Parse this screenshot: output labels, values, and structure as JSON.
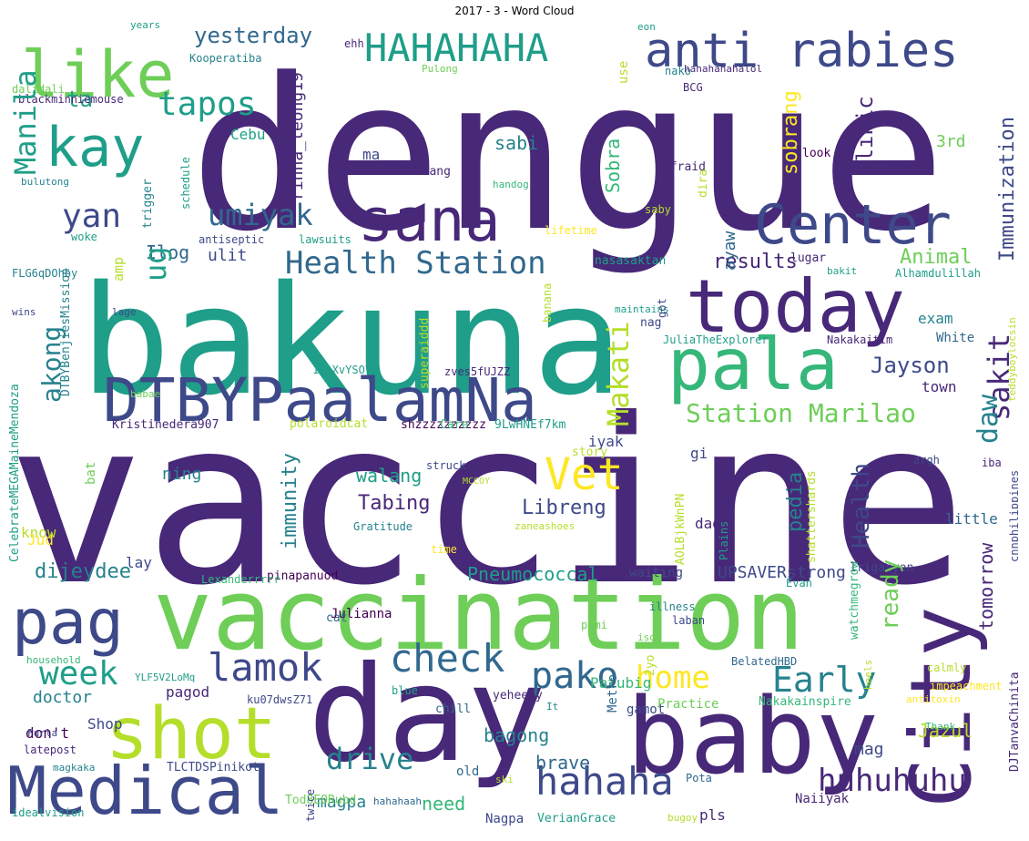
{
  "title": "2017 - 3 - Word Cloud",
  "colors": {
    "c1": "#440154",
    "c2": "#482878",
    "c3": "#3e4989",
    "c4": "#31688e",
    "c5": "#26828e",
    "c6": "#1f9e89",
    "c7": "#35b779",
    "c8": "#6ece58",
    "c9": "#b5de2b",
    "c10": "#fde725"
  },
  "words": [
    {
      "text": "dengue",
      "color": "c2"
    },
    {
      "text": "vaccine",
      "color": "c2"
    },
    {
      "text": "bakuna",
      "color": "c6"
    },
    {
      "text": "vaccination",
      "color": "c8"
    },
    {
      "text": "day",
      "color": "c2"
    },
    {
      "text": "baby",
      "color": "c2"
    },
    {
      "text": "shot",
      "color": "c9"
    },
    {
      "text": "Medical",
      "color": "c3"
    },
    {
      "text": "City",
      "color": "c2"
    },
    {
      "text": "DTBYPaalamNa",
      "color": "c3"
    },
    {
      "text": "today",
      "color": "c2"
    },
    {
      "text": "pala",
      "color": "c7"
    },
    {
      "text": "sana",
      "color": "c2"
    },
    {
      "text": "Center",
      "color": "c3"
    },
    {
      "text": "pag",
      "color": "c3"
    },
    {
      "text": "like",
      "color": "c8"
    },
    {
      "text": "kay",
      "color": "c6"
    },
    {
      "text": "anti rabies",
      "color": "c3"
    },
    {
      "text": "HAHAHAHA",
      "color": "c6"
    },
    {
      "text": "Vet",
      "color": "c10"
    },
    {
      "text": "check",
      "color": "c4"
    },
    {
      "text": "lamok",
      "color": "c3"
    },
    {
      "text": "pako",
      "color": "c4"
    },
    {
      "text": "hahaha",
      "color": "c3"
    },
    {
      "text": "huhuhuhu",
      "color": "c2"
    },
    {
      "text": "Early",
      "color": "c5"
    },
    {
      "text": "home",
      "color": "c10"
    },
    {
      "text": "week",
      "color": "c6"
    },
    {
      "text": "drive",
      "color": "c5"
    },
    {
      "text": "Health Station",
      "color": "c4"
    },
    {
      "text": "Station Marilao",
      "color": "c8"
    },
    {
      "text": "umiyak",
      "color": "c4"
    },
    {
      "text": "yan",
      "color": "c3"
    },
    {
      "text": "Jayson",
      "color": "c3"
    },
    {
      "text": "Libreng",
      "color": "c3"
    },
    {
      "text": "Tabing",
      "color": "c2"
    },
    {
      "text": "walang",
      "color": "c6"
    },
    {
      "text": "results",
      "color": "c2"
    },
    {
      "text": "Animal",
      "color": "c8"
    },
    {
      "text": "dijeydee",
      "color": "c5"
    },
    {
      "text": "Pneumococcal",
      "color": "c6"
    },
    {
      "text": "UPSAVERstrong",
      "color": "c3"
    },
    {
      "text": "brave",
      "color": "c4"
    },
    {
      "text": "need",
      "color": "c7"
    },
    {
      "text": "magpa",
      "color": "c5"
    },
    {
      "text": "pls",
      "color": "c2"
    },
    {
      "text": "yesterday",
      "color": "c4"
    },
    {
      "text": "tapos",
      "color": "c6"
    },
    {
      "text": "ta",
      "color": "c6"
    },
    {
      "text": "Ilog",
      "color": "c4"
    },
    {
      "text": "ulit",
      "color": "c3"
    },
    {
      "text": "ning",
      "color": "c5"
    },
    {
      "text": "doctor",
      "color": "c5"
    },
    {
      "text": "Shop",
      "color": "c3"
    },
    {
      "text": "pagod",
      "color": "c2"
    },
    {
      "text": "Patubig",
      "color": "c7"
    },
    {
      "text": "bagong",
      "color": "c5"
    },
    {
      "text": "don't",
      "color": "c1"
    },
    {
      "text": "Jazul",
      "color": "c9"
    },
    {
      "text": "mag",
      "color": "c3"
    },
    {
      "text": "iyak",
      "color": "c3"
    },
    {
      "text": "dad",
      "color": "c2"
    },
    {
      "text": "gi",
      "color": "c3"
    },
    {
      "text": "town",
      "color": "c2"
    },
    {
      "text": "exam",
      "color": "c5"
    },
    {
      "text": "3rd",
      "color": "c8"
    },
    {
      "text": "sabi",
      "color": "c5"
    },
    {
      "text": "ma",
      "color": "c3"
    },
    {
      "text": "Cebu",
      "color": "c6"
    },
    {
      "text": "know",
      "color": "c9"
    },
    {
      "text": "lay",
      "color": "c3"
    },
    {
      "text": "little",
      "color": "c4"
    },
    {
      "text": "waiting",
      "color": "c3"
    },
    {
      "text": "gamot",
      "color": "c3"
    },
    {
      "text": "Practice",
      "color": "c8"
    },
    {
      "text": "old",
      "color": "c4"
    },
    {
      "text": "chill",
      "color": "c4"
    },
    {
      "text": "yeheeey",
      "color": "c2"
    },
    {
      "text": "Julianna",
      "color": "c1"
    },
    {
      "text": "cat",
      "color": "c4"
    },
    {
      "text": "Nagpa",
      "color": "c3"
    },
    {
      "text": "VerianGrace",
      "color": "c6"
    },
    {
      "text": "Tod8EORubd",
      "color": "c8"
    },
    {
      "text": "TLCTDSPinikot",
      "color": "c3"
    },
    {
      "text": "Naiiyak",
      "color": "c2"
    },
    {
      "text": "Jud",
      "color": "c10"
    },
    {
      "text": "Kristinedera907",
      "color": "c2"
    },
    {
      "text": "polaroidcat",
      "color": "c9"
    },
    {
      "text": "shzzzzzzzzzz",
      "color": "c1"
    },
    {
      "text": "Care",
      "color": "c7"
    },
    {
      "text": "9LwHNEf7km",
      "color": "c6"
    },
    {
      "text": "zves5fUJZZ",
      "color": "c2"
    },
    {
      "text": "1VoXvYSO7F",
      "color": "c6"
    },
    {
      "text": "JuliaTheExplorer",
      "color": "c6"
    },
    {
      "text": "Nakakaitim",
      "color": "c2"
    },
    {
      "text": "White",
      "color": "c4"
    },
    {
      "text": "nag",
      "color": "c3"
    },
    {
      "text": "nasasaktan",
      "color": "c6"
    },
    {
      "text": "lugar",
      "color": "c2"
    },
    {
      "text": "bakit",
      "color": "c6"
    },
    {
      "text": "Alhamdulillah",
      "color": "c6"
    },
    {
      "text": "maintains",
      "color": "c6"
    },
    {
      "text": "antiseptic",
      "color": "c3"
    },
    {
      "text": "lawsuits",
      "color": "c6"
    },
    {
      "text": "lifetime",
      "color": "c10"
    },
    {
      "text": "saby",
      "color": "c9"
    },
    {
      "text": "afraid",
      "color": "c2"
    },
    {
      "text": "handog",
      "color": "c7"
    },
    {
      "text": "habang",
      "color": "c2"
    },
    {
      "text": "look",
      "color": "c1"
    },
    {
      "text": "BCG",
      "color": "c2"
    },
    {
      "text": "nako",
      "color": "c5"
    },
    {
      "text": "hahahahahalol",
      "color": "c2"
    },
    {
      "text": "eon",
      "color": "c6"
    },
    {
      "text": "ehh",
      "color": "c2"
    },
    {
      "text": "Pulong",
      "color": "c8"
    },
    {
      "text": "Kooperatiba",
      "color": "c5"
    },
    {
      "text": "years",
      "color": "c6"
    },
    {
      "text": "dalidali",
      "color": "c8"
    },
    {
      "text": "blackminniemouse",
      "color": "c2"
    },
    {
      "text": "bulutong",
      "color": "c5"
    },
    {
      "text": "woke",
      "color": "c6"
    },
    {
      "text": "FLG6qDOhby",
      "color": "c5"
    },
    {
      "text": "wins",
      "color": "c3"
    },
    {
      "text": "lage",
      "color": "c3"
    },
    {
      "text": "babae",
      "color": "c8"
    },
    {
      "text": "struck",
      "color": "c3"
    },
    {
      "text": "MCCOY",
      "color": "c9"
    },
    {
      "text": "Gratitude",
      "color": "c5"
    },
    {
      "text": "zaneashoes",
      "color": "c9"
    },
    {
      "text": "time",
      "color": "c10"
    },
    {
      "text": "story",
      "color": "c9"
    },
    {
      "text": "pinapanuod",
      "color": "c1"
    },
    {
      "text": "Lexanderrrrr",
      "color": "c7"
    },
    {
      "text": "Evan",
      "color": "c6"
    },
    {
      "text": "argh",
      "color": "c3"
    },
    {
      "text": "iba",
      "color": "c2"
    },
    {
      "text": "Irigasyon",
      "color": "c3"
    },
    {
      "text": "illness",
      "color": "c5"
    },
    {
      "text": "laban",
      "color": "c3"
    },
    {
      "text": "pami",
      "color": "c8"
    },
    {
      "text": "isog",
      "color": "c8"
    },
    {
      "text": "BelatedHBD",
      "color": "c4"
    },
    {
      "text": "impeachment",
      "color": "c10"
    },
    {
      "text": "calmly",
      "color": "c9"
    },
    {
      "text": "antitoxin",
      "color": "c10"
    },
    {
      "text": "Nakakainspire",
      "color": "c7"
    },
    {
      "text": "Thank",
      "color": "c7"
    },
    {
      "text": "Pota",
      "color": "c4"
    },
    {
      "text": "bugoy",
      "color": "c9"
    },
    {
      "text": "ski",
      "color": "c9"
    },
    {
      "text": "It",
      "color": "c5"
    },
    {
      "text": "blue",
      "color": "c6"
    },
    {
      "text": "ku07dwsZ71",
      "color": "c3"
    },
    {
      "text": "YLF5V2LoMq",
      "color": "c6"
    },
    {
      "text": "household",
      "color": "c7"
    },
    {
      "text": "Furla",
      "color": "c3"
    },
    {
      "text": "latepost",
      "color": "c2"
    },
    {
      "text": "magkaka",
      "color": "c5"
    },
    {
      "text": "idealvision",
      "color": "c6"
    },
    {
      "text": "hahahaah",
      "color": "c4"
    },
    {
      "text": "twice",
      "color": "c3"
    },
    {
      "text": "Manila",
      "color": "c6"
    },
    {
      "text": "ug",
      "color": "c6"
    },
    {
      "text": "akong",
      "color": "c5"
    },
    {
      "text": "immunity",
      "color": "c5"
    },
    {
      "text": "Makati",
      "color": "c9"
    },
    {
      "text": "sakit",
      "color": "c2"
    },
    {
      "text": "daw",
      "color": "c5"
    },
    {
      "text": "Immunization",
      "color": "c3"
    },
    {
      "text": "Clinic",
      "color": "c2"
    },
    {
      "text": "sobrang",
      "color": "c10"
    },
    {
      "text": "rinna_leong19",
      "color": "c2"
    },
    {
      "text": "Sobra",
      "color": "c7"
    },
    {
      "text": "use",
      "color": "c9"
    },
    {
      "text": "pedia",
      "color": "c5"
    },
    {
      "text": "Health",
      "color": "c3"
    },
    {
      "text": "ready",
      "color": "c8"
    },
    {
      "text": "tomorrow",
      "color": "c2"
    },
    {
      "text": "ayaw",
      "color": "c4"
    },
    {
      "text": "got",
      "color": "c3"
    },
    {
      "text": "Metro",
      "color": "c4"
    },
    {
      "text": "2yo",
      "color": "c9"
    },
    {
      "text": "CelebrateMEGAMaineMendoza",
      "color": "c6"
    },
    {
      "text": "DTBYBenjiesMission",
      "color": "c5"
    },
    {
      "text": "bat",
      "color": "c8"
    },
    {
      "text": "schedule",
      "color": "c6"
    },
    {
      "text": "trigger",
      "color": "c5"
    },
    {
      "text": "amp",
      "color": "c9"
    },
    {
      "text": "superaiddd",
      "color": "c9"
    },
    {
      "text": "banana",
      "color": "c9"
    },
    {
      "text": "dira",
      "color": "c9"
    },
    {
      "text": "AOLBjkWnPN",
      "color": "c9"
    },
    {
      "text": "Plains",
      "color": "c6"
    },
    {
      "text": "shattershards",
      "color": "c9"
    },
    {
      "text": "watchmegrow",
      "color": "c7"
    },
    {
      "text": "heels",
      "color": "c9"
    },
    {
      "text": "teddyboylocsin",
      "color": "c9"
    },
    {
      "text": "DJTanyaChinita",
      "color": "c2"
    },
    {
      "text": "cnnphilippines",
      "color": "c3"
    }
  ]
}
